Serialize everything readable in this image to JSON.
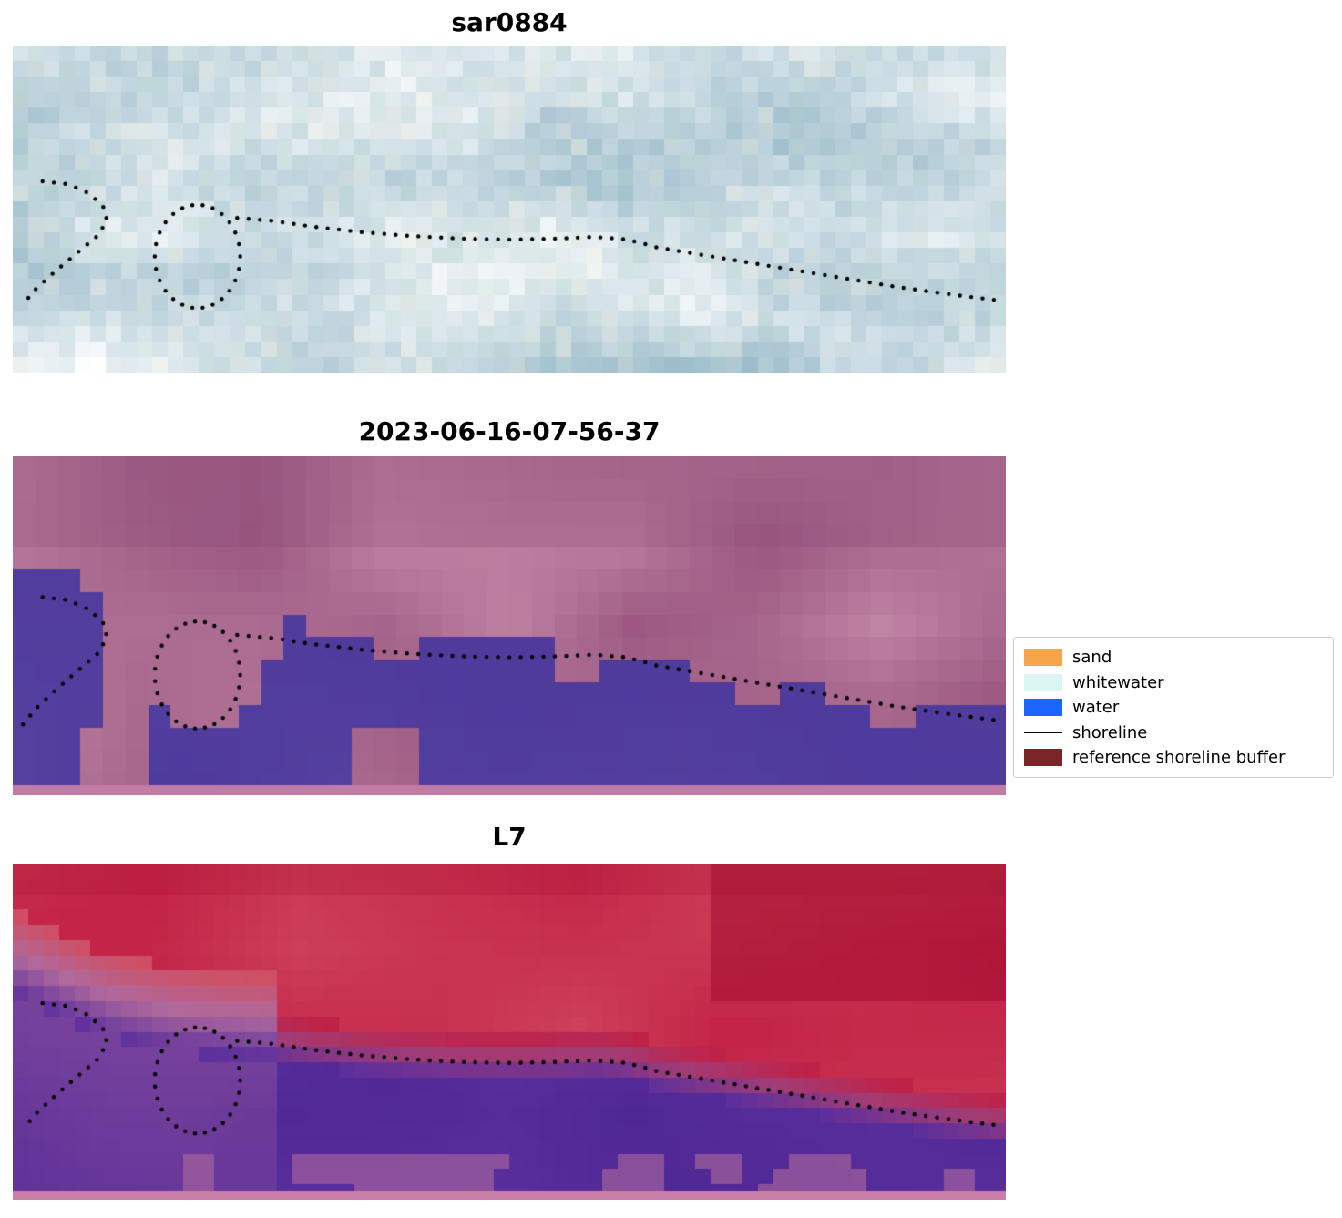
{
  "panels": [
    {
      "id": "sar",
      "title": "sar0884"
    },
    {
      "id": "classified",
      "title": "2023-06-16-07-56-37"
    },
    {
      "id": "l7",
      "title": "L7"
    }
  ],
  "legend": {
    "items": [
      {
        "label": "sand",
        "color": "#f7a54a",
        "type": "patch"
      },
      {
        "label": "whitewater",
        "color": "#d9f6f2",
        "type": "patch"
      },
      {
        "label": "water",
        "color": "#1a66ff",
        "type": "patch"
      },
      {
        "label": "shoreline",
        "color": "#000000",
        "type": "line"
      },
      {
        "label": "reference shoreline buffer",
        "color": "#7b2626",
        "type": "patch"
      }
    ]
  },
  "chart_data": {
    "type": "heatmap",
    "title": "",
    "description": "Three stacked satellite image panels with a dotted mapped shoreline overlaid on each: a pale blue/white SAR image (sar0884), a classified optical image dated 2023-06-16-07-56-37 (mauve land, purple water mask), and a Landsat 7 false-colour image (crimson upper land, purple water).",
    "legend_labels": [
      "sand",
      "whitewater",
      "water",
      "shoreline",
      "reference shoreline buffer"
    ],
    "legend_position": "center right",
    "shoreline": {
      "hook": [
        [
          0.03,
          0.415
        ],
        [
          0.056,
          0.424
        ],
        [
          0.077,
          0.452
        ],
        [
          0.091,
          0.492
        ],
        [
          0.095,
          0.535
        ],
        [
          0.085,
          0.583
        ],
        [
          0.064,
          0.636
        ],
        [
          0.043,
          0.69
        ],
        [
          0.024,
          0.742
        ],
        [
          0.01,
          0.792
        ]
      ],
      "loop": {
        "cx": 0.186,
        "cy": 0.645,
        "rx": 0.043,
        "ry": 0.158
      },
      "main": [
        [
          0.226,
          0.527
        ],
        [
          0.262,
          0.536
        ],
        [
          0.3,
          0.553
        ],
        [
          0.35,
          0.57
        ],
        [
          0.4,
          0.582
        ],
        [
          0.45,
          0.59
        ],
        [
          0.5,
          0.593
        ],
        [
          0.55,
          0.59
        ],
        [
          0.585,
          0.585
        ],
        [
          0.615,
          0.592
        ],
        [
          0.632,
          0.603
        ],
        [
          0.648,
          0.617
        ],
        [
          0.69,
          0.638
        ],
        [
          0.73,
          0.658
        ],
        [
          0.77,
          0.678
        ],
        [
          0.81,
          0.698
        ],
        [
          0.85,
          0.718
        ],
        [
          0.89,
          0.738
        ],
        [
          0.93,
          0.755
        ],
        [
          0.965,
          0.769
        ],
        [
          0.995,
          0.78
        ]
      ],
      "boundary_left": [
        [
          0.0,
          0.345
        ],
        [
          0.05,
          0.41
        ],
        [
          0.1,
          0.47
        ],
        [
          0.16,
          0.51
        ],
        [
          0.2,
          0.522
        ]
      ]
    },
    "panel_render": [
      {
        "title": "sar0884",
        "palette": {
          "dark": "#9cbccb",
          "light": "#ffffff",
          "teal": "#bcd9cf",
          "cream": "#f1ecd9"
        }
      },
      {
        "title": "2023-06-16-07-56-37",
        "palette": {
          "pink_dark": "#99557f",
          "pink": "#a9618c",
          "pink_light": "#c084a4",
          "pink_top": "#92537c",
          "purple": "#4e3a9c",
          "purple_light": "#5c46a4",
          "bottom_strip": "#c27ba4"
        }
      },
      {
        "title": "L7",
        "palette": {
          "red": "#c22045",
          "red_dark": "#a30c2e",
          "red_light": "#d14e62",
          "magenta": "#a23d77",
          "purple": "#5b2f9e",
          "purple_dark": "#482290",
          "pink": "#b06a9d",
          "bottom_strip": "#c97fa8"
        }
      }
    ]
  }
}
